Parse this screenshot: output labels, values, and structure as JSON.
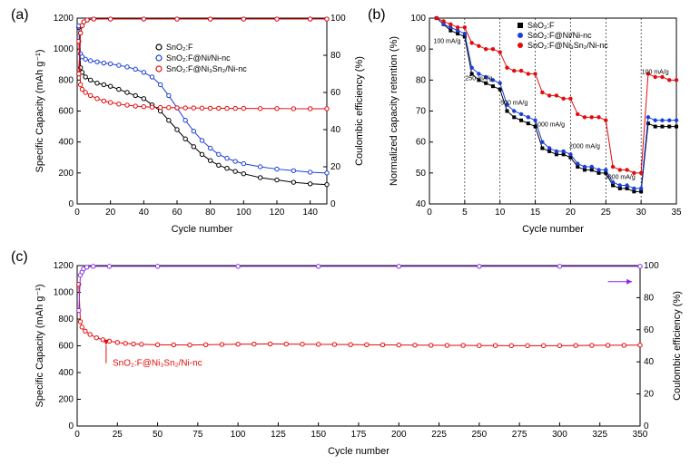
{
  "labels": {
    "a": "(a)",
    "b": "(b)",
    "c": "(c)"
  },
  "legendNames": {
    "s1": "SnO₂:F",
    "s2": "SnO₂:F@Ni/Ni-nc",
    "s3": "SnO₂:F@Ni₃Sn₂/Ni-nc"
  },
  "panelA": {
    "xlabel": "Cycle number",
    "ylabel": "Specific Capacity (mAh g⁻¹)",
    "y2label": "Coulombic efficiency (%)",
    "xlim": [
      0,
      150
    ],
    "ylim": [
      0,
      1200
    ],
    "y2lim": [
      0,
      100
    ],
    "xtick": 20,
    "ytick": 200,
    "y2tick": 20,
    "s1Color": "#000000",
    "s2Color": "#1b3fd6",
    "s3Color": "#e30b0b",
    "ceS1Color": "#000000",
    "ceS2Color": "#1b3fd6",
    "ceS3Color": "#e30b0b",
    "s1": [
      [
        1,
        1140
      ],
      [
        2,
        880
      ],
      [
        3,
        850
      ],
      [
        5,
        820
      ],
      [
        8,
        800
      ],
      [
        12,
        780
      ],
      [
        16,
        770
      ],
      [
        20,
        760
      ],
      [
        25,
        740
      ],
      [
        30,
        720
      ],
      [
        35,
        700
      ],
      [
        40,
        680
      ],
      [
        45,
        640
      ],
      [
        50,
        600
      ],
      [
        55,
        540
      ],
      [
        60,
        480
      ],
      [
        65,
        420
      ],
      [
        70,
        370
      ],
      [
        75,
        320
      ],
      [
        80,
        280
      ],
      [
        85,
        250
      ],
      [
        90,
        230
      ],
      [
        95,
        210
      ],
      [
        100,
        195
      ],
      [
        110,
        170
      ],
      [
        120,
        155
      ],
      [
        130,
        140
      ],
      [
        140,
        130
      ],
      [
        150,
        125
      ]
    ],
    "s2": [
      [
        1,
        1150
      ],
      [
        2,
        970
      ],
      [
        3,
        950
      ],
      [
        5,
        935
      ],
      [
        8,
        925
      ],
      [
        12,
        918
      ],
      [
        16,
        910
      ],
      [
        20,
        905
      ],
      [
        25,
        895
      ],
      [
        30,
        885
      ],
      [
        35,
        870
      ],
      [
        40,
        850
      ],
      [
        45,
        820
      ],
      [
        50,
        770
      ],
      [
        55,
        700
      ],
      [
        60,
        620
      ],
      [
        65,
        540
      ],
      [
        70,
        470
      ],
      [
        75,
        410
      ],
      [
        80,
        360
      ],
      [
        85,
        320
      ],
      [
        90,
        295
      ],
      [
        95,
        275
      ],
      [
        100,
        260
      ],
      [
        110,
        240
      ],
      [
        120,
        225
      ],
      [
        130,
        215
      ],
      [
        140,
        205
      ],
      [
        150,
        200
      ]
    ],
    "s3": [
      [
        1,
        1050
      ],
      [
        2,
        770
      ],
      [
        3,
        740
      ],
      [
        5,
        720
      ],
      [
        8,
        700
      ],
      [
        12,
        680
      ],
      [
        16,
        665
      ],
      [
        20,
        655
      ],
      [
        25,
        645
      ],
      [
        30,
        638
      ],
      [
        35,
        632
      ],
      [
        40,
        628
      ],
      [
        45,
        625
      ],
      [
        50,
        623
      ],
      [
        55,
        622
      ],
      [
        60,
        621
      ],
      [
        65,
        620
      ],
      [
        70,
        620
      ],
      [
        75,
        619
      ],
      [
        80,
        618
      ],
      [
        85,
        618
      ],
      [
        90,
        617
      ],
      [
        95,
        617
      ],
      [
        100,
        617
      ],
      [
        110,
        616
      ],
      [
        120,
        616
      ],
      [
        130,
        615
      ],
      [
        140,
        615
      ],
      [
        150,
        615
      ]
    ],
    "ce": [
      [
        1,
        70
      ],
      [
        2,
        92
      ],
      [
        3,
        96
      ],
      [
        4,
        98
      ],
      [
        6,
        99
      ],
      [
        10,
        99.5
      ],
      [
        20,
        99.5
      ],
      [
        40,
        99.5
      ],
      [
        60,
        99.5
      ],
      [
        80,
        99.5
      ],
      [
        100,
        99.5
      ],
      [
        120,
        99.5
      ],
      [
        140,
        99.5
      ],
      [
        150,
        99.5
      ]
    ]
  },
  "panelB": {
    "xlabel": "Cycle number",
    "ylabel": "Normalized capacity retention (%)",
    "xlim": [
      0,
      35
    ],
    "ylim": [
      40,
      100
    ],
    "xtick": 5,
    "ytick": 10,
    "s1Color": "#000000",
    "s2Color": "#1b3fd6",
    "s3Color": "#e30b0b",
    "vlineColor": "#000000",
    "rates": [
      "100 mA/g",
      "250 mA/g",
      "500 mA/g",
      "1000 mA/g",
      "2000 mA/g",
      "3000 mA/g",
      "100 mA/g"
    ],
    "rateX": [
      2.5,
      7,
      12,
      17,
      22,
      27,
      32
    ],
    "rateY": [
      92,
      80,
      72,
      65,
      58,
      48,
      82
    ],
    "vlines": [
      5,
      10,
      15,
      20,
      25,
      30
    ],
    "s1": [
      [
        1,
        100
      ],
      [
        2,
        98
      ],
      [
        3,
        96
      ],
      [
        4,
        95
      ],
      [
        5,
        94
      ],
      [
        6,
        82
      ],
      [
        7,
        80
      ],
      [
        8,
        79
      ],
      [
        9,
        78
      ],
      [
        10,
        77
      ],
      [
        11,
        70
      ],
      [
        12,
        68
      ],
      [
        13,
        67
      ],
      [
        14,
        66
      ],
      [
        15,
        65
      ],
      [
        16,
        58
      ],
      [
        17,
        57
      ],
      [
        18,
        56
      ],
      [
        19,
        56
      ],
      [
        20,
        55
      ],
      [
        21,
        52
      ],
      [
        22,
        51
      ],
      [
        23,
        51
      ],
      [
        24,
        50
      ],
      [
        25,
        50
      ],
      [
        26,
        46
      ],
      [
        27,
        45
      ],
      [
        28,
        45
      ],
      [
        29,
        44
      ],
      [
        30,
        44
      ],
      [
        31,
        66
      ],
      [
        32,
        65
      ],
      [
        33,
        65
      ],
      [
        34,
        65
      ],
      [
        35,
        65
      ]
    ],
    "s2": [
      [
        1,
        100
      ],
      [
        2,
        98
      ],
      [
        3,
        97
      ],
      [
        4,
        96
      ],
      [
        5,
        95
      ],
      [
        6,
        84
      ],
      [
        7,
        82
      ],
      [
        8,
        81
      ],
      [
        9,
        80
      ],
      [
        10,
        79
      ],
      [
        11,
        72
      ],
      [
        12,
        70
      ],
      [
        13,
        69
      ],
      [
        14,
        68
      ],
      [
        15,
        67
      ],
      [
        16,
        60
      ],
      [
        17,
        58
      ],
      [
        18,
        57
      ],
      [
        19,
        57
      ],
      [
        20,
        56
      ],
      [
        21,
        53
      ],
      [
        22,
        52
      ],
      [
        23,
        52
      ],
      [
        24,
        51
      ],
      [
        25,
        51
      ],
      [
        26,
        47
      ],
      [
        27,
        46
      ],
      [
        28,
        46
      ],
      [
        29,
        45
      ],
      [
        30,
        45
      ],
      [
        31,
        68
      ],
      [
        32,
        67
      ],
      [
        33,
        67
      ],
      [
        34,
        67
      ],
      [
        35,
        67
      ]
    ],
    "s3": [
      [
        1,
        100
      ],
      [
        2,
        99
      ],
      [
        3,
        98
      ],
      [
        4,
        97
      ],
      [
        5,
        97
      ],
      [
        6,
        92
      ],
      [
        7,
        91
      ],
      [
        8,
        90
      ],
      [
        9,
        90
      ],
      [
        10,
        89
      ],
      [
        11,
        84
      ],
      [
        12,
        83
      ],
      [
        13,
        83
      ],
      [
        14,
        82
      ],
      [
        15,
        82
      ],
      [
        16,
        76
      ],
      [
        17,
        75
      ],
      [
        18,
        75
      ],
      [
        19,
        74
      ],
      [
        20,
        74
      ],
      [
        21,
        69
      ],
      [
        22,
        68
      ],
      [
        23,
        68
      ],
      [
        24,
        68
      ],
      [
        25,
        67
      ],
      [
        26,
        52
      ],
      [
        27,
        51
      ],
      [
        28,
        51
      ],
      [
        29,
        50
      ],
      [
        30,
        50
      ],
      [
        31,
        82
      ],
      [
        32,
        81
      ],
      [
        33,
        81
      ],
      [
        34,
        80
      ],
      [
        35,
        80
      ]
    ]
  },
  "panelC": {
    "xlabel": "Cycle number",
    "ylabel": "Specific Capacity (mAh g⁻¹)",
    "y2label": "Coulombic efficiency (%)",
    "xlim": [
      0,
      350
    ],
    "ylim": [
      0,
      1200
    ],
    "y2lim": [
      0,
      100
    ],
    "xtick": 25,
    "ytick": 200,
    "y2tick": 20,
    "sColor": "#e30b0b",
    "ceColor": "#8a2be2",
    "legend": "SnO₂:F@Ni₃Sn₂/Ni-nc",
    "cap": [
      [
        1,
        1060
      ],
      [
        2,
        780
      ],
      [
        3,
        740
      ],
      [
        5,
        710
      ],
      [
        8,
        685
      ],
      [
        12,
        660
      ],
      [
        16,
        645
      ],
      [
        20,
        635
      ],
      [
        25,
        625
      ],
      [
        30,
        618
      ],
      [
        35,
        614
      ],
      [
        40,
        611
      ],
      [
        50,
        608
      ],
      [
        60,
        607
      ],
      [
        70,
        606
      ],
      [
        80,
        608
      ],
      [
        90,
        610
      ],
      [
        100,
        612
      ],
      [
        110,
        613
      ],
      [
        120,
        614
      ],
      [
        130,
        613
      ],
      [
        140,
        612
      ],
      [
        150,
        611
      ],
      [
        160,
        610
      ],
      [
        170,
        609
      ],
      [
        180,
        608
      ],
      [
        190,
        607
      ],
      [
        200,
        606
      ],
      [
        210,
        605
      ],
      [
        220,
        604
      ],
      [
        230,
        603
      ],
      [
        240,
        603
      ],
      [
        250,
        602
      ],
      [
        260,
        602
      ],
      [
        270,
        601
      ],
      [
        280,
        601
      ],
      [
        290,
        601
      ],
      [
        300,
        601
      ],
      [
        310,
        602
      ],
      [
        320,
        603
      ],
      [
        330,
        604
      ],
      [
        340,
        604
      ],
      [
        350,
        605
      ]
    ],
    "ce": [
      [
        1,
        72
      ],
      [
        2,
        94
      ],
      [
        3,
        96
      ],
      [
        4,
        98
      ],
      [
        6,
        99
      ],
      [
        10,
        99.5
      ],
      [
        20,
        99.5
      ],
      [
        50,
        99.5
      ],
      [
        100,
        99.5
      ],
      [
        150,
        99.5
      ],
      [
        200,
        99.5
      ],
      [
        250,
        99.5
      ],
      [
        300,
        99.5
      ],
      [
        350,
        99.5
      ]
    ]
  }
}
